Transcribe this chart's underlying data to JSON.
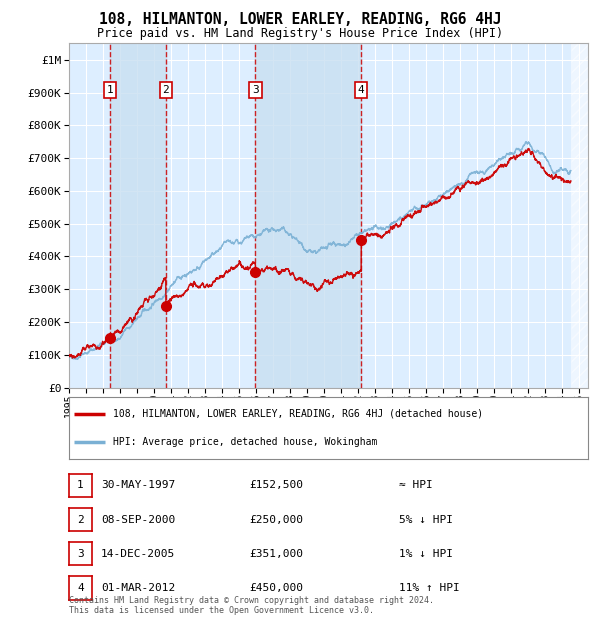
{
  "title": "108, HILMANTON, LOWER EARLEY, READING, RG6 4HJ",
  "subtitle": "Price paid vs. HM Land Registry's House Price Index (HPI)",
  "footer": "Contains HM Land Registry data © Crown copyright and database right 2024.\nThis data is licensed under the Open Government Licence v3.0.",
  "legend_line1": "108, HILMANTON, LOWER EARLEY, READING, RG6 4HJ (detached house)",
  "legend_line2": "HPI: Average price, detached house, Wokingham",
  "red_color": "#cc0000",
  "blue_color": "#7ab0d4",
  "bg_color": "#ddeeff",
  "grid_color": "#ffffff",
  "purchases": [
    {
      "num": 1,
      "date_x": 1997.41,
      "price": 152500,
      "label": "30-MAY-1997",
      "price_str": "£152,500",
      "hpi_str": "≈ HPI"
    },
    {
      "num": 2,
      "date_x": 2000.69,
      "price": 250000,
      "label": "08-SEP-2000",
      "price_str": "£250,000",
      "hpi_str": "5% ↓ HPI"
    },
    {
      "num": 3,
      "date_x": 2005.96,
      "price": 351000,
      "label": "14-DEC-2005",
      "price_str": "£351,000",
      "hpi_str": "1% ↓ HPI"
    },
    {
      "num": 4,
      "date_x": 2012.17,
      "price": 450000,
      "label": "01-MAR-2012",
      "price_str": "£450,000",
      "hpi_str": "11% ↑ HPI"
    }
  ],
  "ylim": [
    0,
    1050000
  ],
  "xlim_start": 1995.0,
  "xlim_end": 2025.5,
  "hatch_start": 2024.5
}
